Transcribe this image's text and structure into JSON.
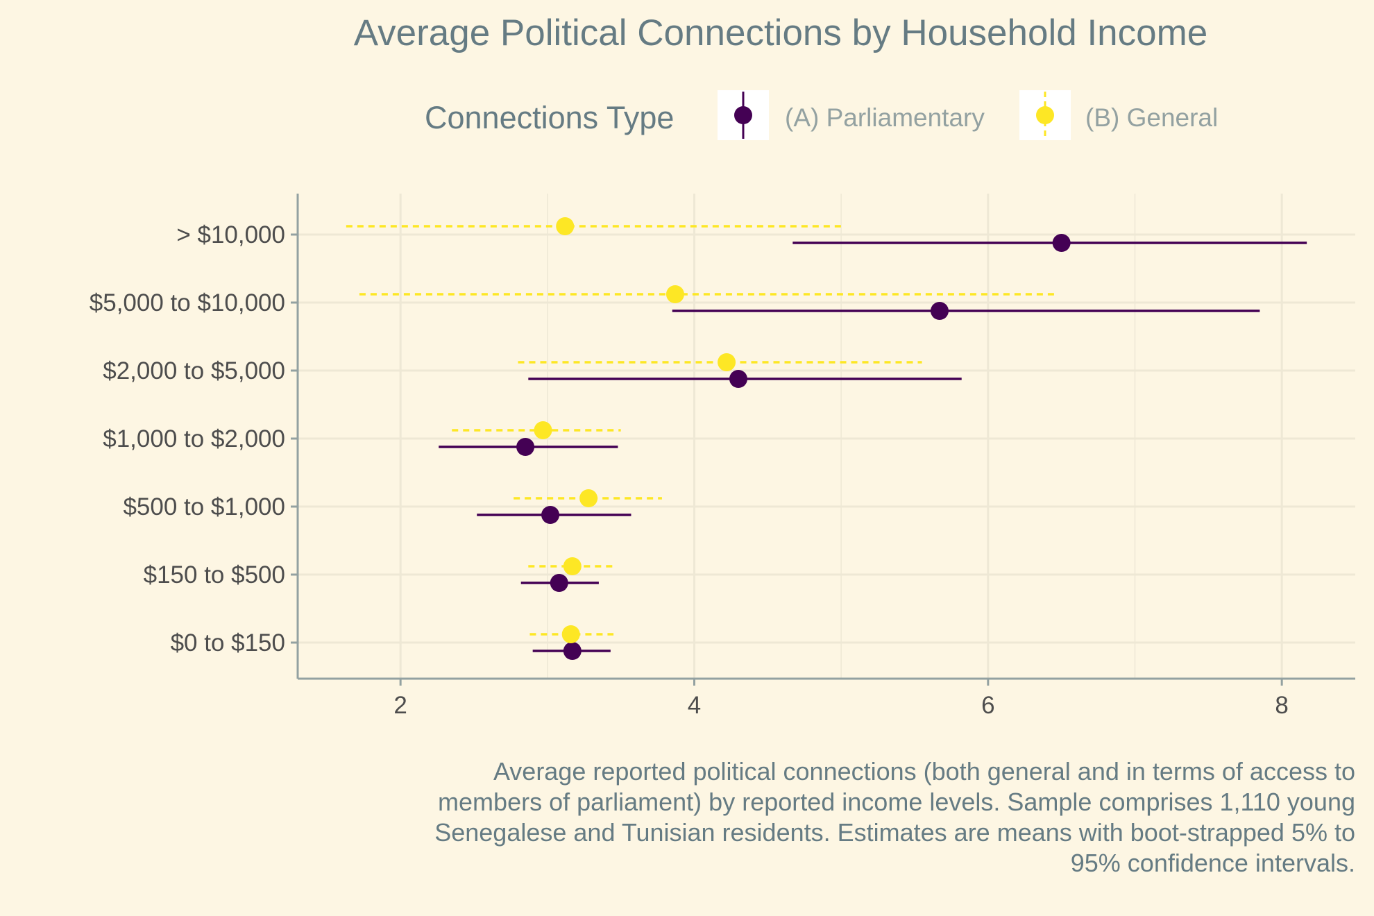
{
  "chart_data": {
    "type": "scatter",
    "subtype": "pointrange",
    "title": "Average Political Connections by Household Income",
    "xlabel": "",
    "ylabel": "",
    "xlim": [
      1.3,
      8.5
    ],
    "x_ticks": [
      "2",
      "4",
      "6",
      "8"
    ],
    "x_tick_values": [
      2,
      4,
      6,
      8
    ],
    "categories": [
      "> $10,000",
      "$5,000 to $10,000",
      "$2,000 to $5,000",
      "$1,000 to $2,000",
      "$500 to $1,000",
      "$150 to $500",
      "$0 to $150"
    ],
    "legend": {
      "title": "Connections Type",
      "placement": "top"
    },
    "grid": true,
    "series": [
      {
        "name": "(A) Parliamentary",
        "color": "#440154",
        "line_style": "solid",
        "estimates": [
          6.5,
          5.67,
          4.3,
          2.85,
          3.02,
          3.08,
          3.17
        ],
        "ci_low": [
          4.67,
          3.85,
          2.87,
          2.26,
          2.52,
          2.82,
          2.9
        ],
        "ci_high": [
          8.17,
          7.85,
          5.82,
          3.48,
          3.57,
          3.35,
          3.43
        ]
      },
      {
        "name": "(B) General",
        "color": "#fde725",
        "line_style": "dashed",
        "estimates": [
          3.12,
          3.87,
          4.22,
          2.97,
          3.28,
          3.17,
          3.16
        ],
        "ci_low": [
          1.63,
          1.72,
          2.8,
          2.35,
          2.77,
          2.87,
          2.88
        ],
        "ci_high": [
          5.0,
          6.45,
          5.55,
          3.5,
          3.78,
          3.47,
          3.45
        ]
      }
    ],
    "caption_lines": [
      "Average reported political connections (both general and in terms of access to",
      "members of parliament) by reported income levels. Sample comprises 1,110 young",
      "Senegalese and Tunisian residents. Estimates are means with boot-strapped 5% to",
      "95% confidence intervals."
    ],
    "colors": {
      "background": "#fdf6e3",
      "grid": "#eee8d5",
      "axis": "#93a1a1"
    }
  }
}
